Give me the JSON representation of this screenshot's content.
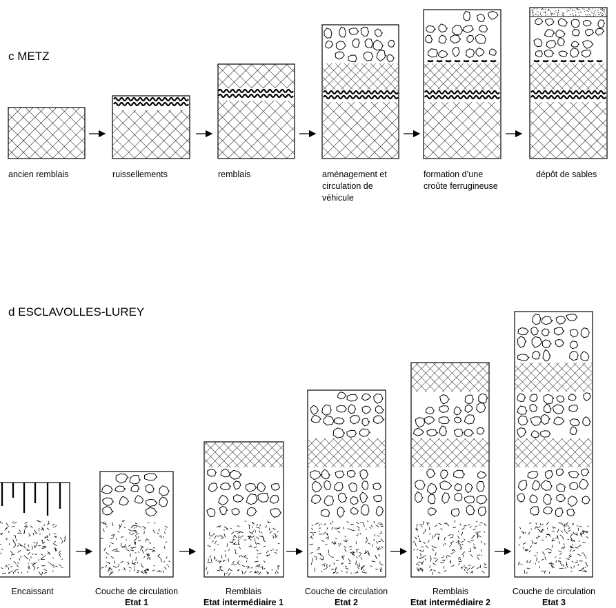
{
  "metz": {
    "title": "c METZ",
    "steps": [
      {
        "label": [
          "ancien remblais"
        ]
      },
      {
        "label": [
          "ruissellements"
        ]
      },
      {
        "label": [
          "remblais"
        ]
      },
      {
        "label": [
          "aménagement et",
          "circulation de",
          "véhicule"
        ]
      },
      {
        "label": [
          "formation d’une",
          "croûte ferrugineuse"
        ]
      },
      {
        "label": [
          "dépôt de sables"
        ]
      }
    ]
  },
  "esclavolles": {
    "title": "d ESCLAVOLLES-LUREY",
    "steps": [
      {
        "label": [
          "Encaissant"
        ],
        "state": ""
      },
      {
        "label": [
          "Couche de circulation"
        ],
        "state": "Etat 1"
      },
      {
        "label": [
          "Remblais"
        ],
        "state": "Etat intermédiaire 1"
      },
      {
        "label": [
          "Couche de circulation"
        ],
        "state": "Etat 2"
      },
      {
        "label": [
          "Remblais"
        ],
        "state": "Etat intermédiaire 2"
      },
      {
        "label": [
          "Couche de circulation"
        ],
        "state": "Etat 3"
      }
    ]
  },
  "colors": {
    "ink": "#000000",
    "paper": "#ffffff"
  }
}
